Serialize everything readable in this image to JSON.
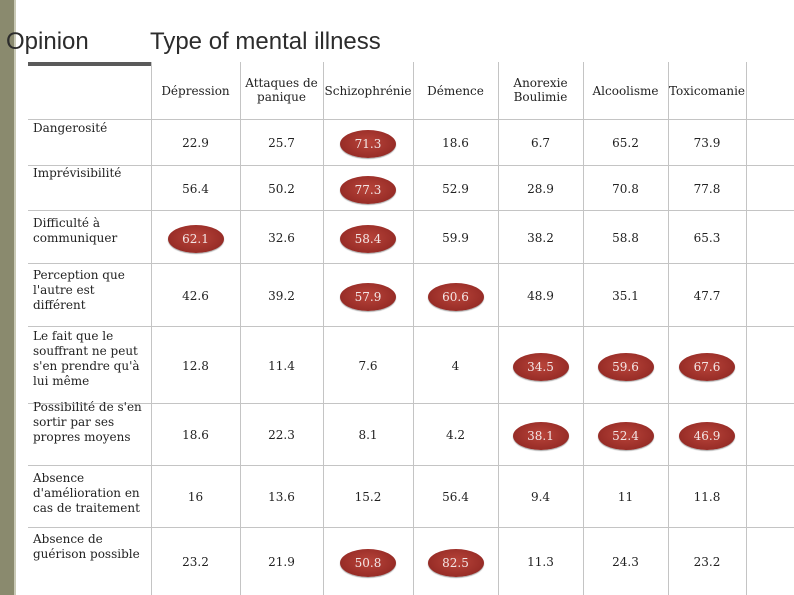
{
  "opinion_label": "Opinion",
  "title": "Type of mental illness",
  "columns": [
    "Dépression",
    "Attaques de panique",
    "Schizophrénie",
    "Démence",
    "Anorexie Boulimie",
    "Alcoolisme",
    "Toxicomanie"
  ],
  "rows": [
    {
      "label": "Dangerosité",
      "values": [
        "22.9",
        "25.7",
        "71.3",
        "18.6",
        "6.7",
        "65.2",
        "73.9"
      ],
      "highlight": [
        false,
        false,
        true,
        false,
        false,
        false,
        false
      ]
    },
    {
      "label": "Imprévisibilité",
      "values": [
        "56.4",
        "50.2",
        "77.3",
        "52.9",
        "28.9",
        "70.8",
        "77.8"
      ],
      "highlight": [
        false,
        false,
        true,
        false,
        false,
        false,
        false
      ]
    },
    {
      "label": "Difficulté à communiquer",
      "values": [
        "62.1",
        "32.6",
        "58.4",
        "59.9",
        "38.2",
        "58.8",
        "65.3"
      ],
      "highlight": [
        true,
        false,
        true,
        false,
        false,
        false,
        false
      ]
    },
    {
      "label": "Perception que l'autre est différent",
      "values": [
        "42.6",
        "39.2",
        "57.9",
        "60.6",
        "48.9",
        "35.1",
        "47.7"
      ],
      "highlight": [
        false,
        false,
        true,
        true,
        false,
        false,
        false
      ]
    },
    {
      "label": "Le fait que le souffrant ne peut s'en prendre qu'à lui même",
      "values": [
        "12.8",
        "11.4",
        "7.6",
        "4",
        "34.5",
        "59.6",
        "67.6"
      ],
      "highlight": [
        false,
        false,
        false,
        false,
        true,
        true,
        true
      ]
    },
    {
      "label": "Possibilité de s'en sortir par ses propres moyens",
      "values": [
        "18.6",
        "22.3",
        "8.1",
        "4.2",
        "38.1",
        "52.4",
        "46.9"
      ],
      "highlight": [
        false,
        false,
        false,
        false,
        true,
        true,
        true
      ]
    },
    {
      "label": "Absence d'amélioration en cas de traitement",
      "values": [
        "16",
        "13.6",
        "15.2",
        "56.4",
        "9.4",
        "11",
        "11.8"
      ],
      "highlight": [
        false,
        false,
        false,
        false,
        false,
        false,
        false
      ]
    },
    {
      "label": "Absence de guérison possible",
      "values": [
        "23.2",
        "21.9",
        "50.8",
        "82.5",
        "11.3",
        "24.3",
        "23.2"
      ],
      "highlight": [
        false,
        false,
        true,
        true,
        false,
        false,
        false
      ]
    }
  ]
}
